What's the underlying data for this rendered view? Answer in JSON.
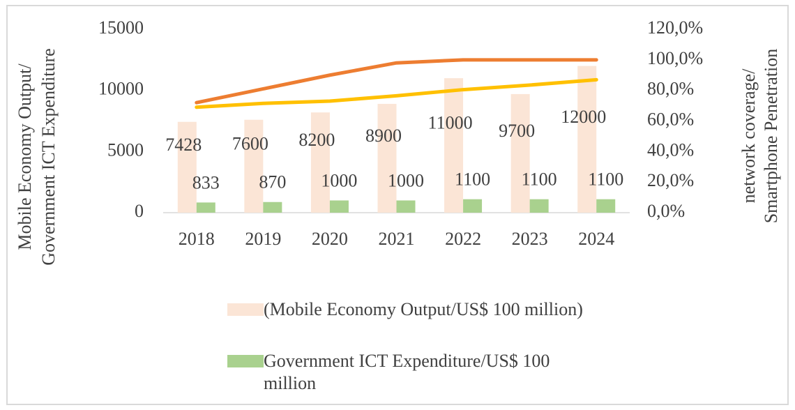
{
  "chart_data": {
    "type": "bar",
    "categories": [
      "2018",
      "2019",
      "2020",
      "2021",
      "2022",
      "2023",
      "2024"
    ],
    "ylabel": [
      "Mobile Economy Output/",
      "Government ICT Expenditure"
    ],
    "y2label": [
      "network coverage/",
      "Smartphone Penetration"
    ],
    "ylim": [
      0,
      15000
    ],
    "yticks": [
      0,
      5000,
      10000,
      15000
    ],
    "y2lim": [
      0,
      120
    ],
    "y2ticks": [
      {
        "value": 0,
        "label": "0,0%"
      },
      {
        "value": 20,
        "label": "20,0%"
      },
      {
        "value": 40,
        "label": "40,0%"
      },
      {
        "value": 60,
        "label": "60,0%"
      },
      {
        "value": 80,
        "label": "80,0%"
      },
      {
        "value": 100,
        "label": "100,0%"
      },
      {
        "value": 120,
        "label": "120,0%"
      }
    ],
    "grid": false,
    "legend": "bottom",
    "series": [
      {
        "name": "(Mobile Economy Output/US$ 100 million)",
        "type": "bar",
        "color": "#fbe5d6",
        "values": [
          7428,
          7600,
          8200,
          8900,
          11000,
          9700,
          12000
        ]
      },
      {
        "name": "Government ICT Expenditure/US$ 100 million",
        "type": "bar",
        "color": "#a9d18e",
        "values": [
          833,
          870,
          1000,
          1000,
          1100,
          1100,
          1100
        ]
      },
      {
        "type": "line",
        "axis": "y2",
        "color": "#ed7d31",
        "values": [
          72,
          81,
          90,
          98,
          100,
          100,
          100
        ]
      },
      {
        "type": "line",
        "axis": "y2",
        "color": "#ffc000",
        "values": [
          69,
          71.5,
          73,
          76.5,
          80.5,
          83.5,
          87
        ]
      }
    ]
  }
}
